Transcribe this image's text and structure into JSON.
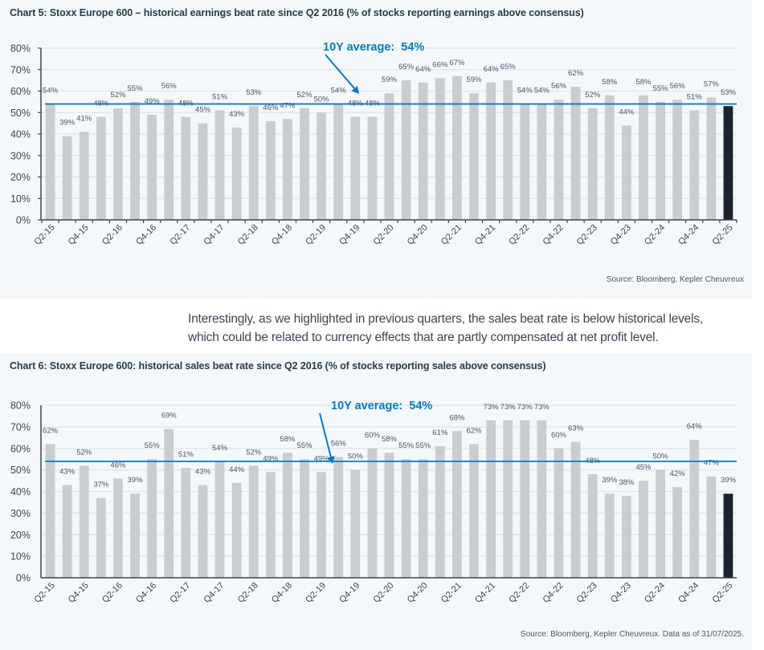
{
  "paragraph": {
    "line1": "Interestingly, as we highlighted in previous quarters, the sales beat rate is below historical levels,",
    "line2": "which could be related to currency effects that are partly compensated at net profit level."
  },
  "colors": {
    "bar": "#c9cdd1",
    "last_bar": "#1c252e",
    "average_line": "#0a7bbd",
    "grid": "#dde5ec",
    "axis": "#3b4653",
    "label": "#4a5663"
  },
  "chart_data": [
    {
      "type": "bar",
      "title": "Chart 5: Stoxx Europe 600 – historical earnings beat rate since Q2 2016 (% of stocks reporting earnings above consensus)",
      "source": "Source: Bloomberg, Kepler Cheuvreux",
      "xlabel": "",
      "ylabel": "",
      "ylim": [
        0,
        80
      ],
      "yticks": [
        "0%",
        "10%",
        "20%",
        "30%",
        "40%",
        "50%",
        "60%",
        "70%",
        "80%"
      ],
      "grid": true,
      "x_tick_marks": true,
      "y_tick_marks": true,
      "categories": [
        "Q2-15",
        "Q3-15",
        "Q4-15",
        "Q1-16",
        "Q2-16",
        "Q3-16",
        "Q4-16",
        "Q1-17",
        "Q2-17",
        "Q3-17",
        "Q4-17",
        "Q1-18",
        "Q2-18",
        "Q3-18",
        "Q4-18",
        "Q1-19",
        "Q2-19",
        "Q3-19",
        "Q4-19",
        "Q1-20",
        "Q2-20",
        "Q3-20",
        "Q4-20",
        "Q1-21",
        "Q2-21",
        "Q3-21",
        "Q4-21",
        "Q1-22",
        "Q2-22",
        "Q3-22",
        "Q4-22",
        "Q1-23",
        "Q2-23",
        "Q3-23",
        "Q4-23",
        "Q1-24",
        "Q2-24",
        "Q3-24",
        "Q4-24",
        "Q1-25",
        "Q2-25"
      ],
      "visible_tick_labels": [
        "Q2-15",
        "Q4-15",
        "Q2-16",
        "Q4-16",
        "Q2-17",
        "Q4-17",
        "Q2-18",
        "Q4-18",
        "Q2-19",
        "Q4-19",
        "Q2-20",
        "Q4-20",
        "Q2-21",
        "Q4-21",
        "Q2-22",
        "Q4-22",
        "Q2-23",
        "Q4-23",
        "Q2-24",
        "Q4-24",
        "Q2-25"
      ],
      "values": [
        54,
        39,
        41,
        48,
        52,
        55,
        49,
        56,
        48,
        45,
        51,
        43,
        53,
        46,
        47,
        52,
        50,
        54,
        48,
        48,
        59,
        65,
        64,
        66,
        67,
        59,
        64,
        65,
        54,
        54,
        56,
        62,
        52,
        58,
        44,
        58,
        55,
        56,
        51,
        57,
        53
      ],
      "data_labels": [
        "54%",
        "39%",
        "41%",
        "48%",
        "52%",
        "55%",
        "49%",
        "56%",
        "48%",
        "45%",
        "51%",
        "43%",
        "53%",
        "46%",
        "47%",
        "52%",
        "50%",
        "54%",
        "48%",
        "48%",
        "59%",
        "65%",
        "64%",
        "66%",
        "67%",
        "59%",
        "64%",
        "65%",
        "54%",
        "54%",
        "56%",
        "62%",
        "52%",
        "58%",
        "44%",
        "58%",
        "55%",
        "56%",
        "51%",
        "57%",
        "53%"
      ],
      "highlight_last": true,
      "average_line": {
        "value": 54,
        "label_prefix": "10Y average:",
        "label_value": "54%"
      }
    },
    {
      "type": "bar",
      "title": "Chart 6: Stoxx Europe 600: historical sales beat rate since Q2 2016 (% of stocks reporting sales above consensus)",
      "source": "Source: Bloomberg, Kepler Cheuvreux. Data as of 31/07/2025.",
      "xlabel": "",
      "ylabel": "",
      "ylim": [
        0,
        80
      ],
      "yticks": [
        "0%",
        "10%",
        "20%",
        "30%",
        "40%",
        "50%",
        "60%",
        "70%",
        "80%"
      ],
      "grid": true,
      "x_tick_marks": false,
      "y_tick_marks": false,
      "categories": [
        "Q2-15",
        "Q3-15",
        "Q4-15",
        "Q1-16",
        "Q2-16",
        "Q3-16",
        "Q4-16",
        "Q1-17",
        "Q2-17",
        "Q3-17",
        "Q4-17",
        "Q1-18",
        "Q2-18",
        "Q3-18",
        "Q4-18",
        "Q1-19",
        "Q2-19",
        "Q3-19",
        "Q4-19",
        "Q1-20",
        "Q2-20",
        "Q3-20",
        "Q4-20",
        "Q1-21",
        "Q2-21",
        "Q3-21",
        "Q4-21",
        "Q1-22",
        "Q2-22",
        "Q3-22",
        "Q4-22",
        "Q1-23",
        "Q2-23",
        "Q3-23",
        "Q4-23",
        "Q1-24",
        "Q2-24",
        "Q3-24",
        "Q4-24",
        "Q1-25",
        "Q2-25"
      ],
      "visible_tick_labels": [
        "Q2-15",
        "Q4-15",
        "Q2-16",
        "Q4-16",
        "Q2-17",
        "Q4-17",
        "Q2-18",
        "Q4-18",
        "Q2-19",
        "Q4-19",
        "Q2-20",
        "Q4-20",
        "Q2-21",
        "Q4-21",
        "Q2-22",
        "Q4-22",
        "Q2-23",
        "Q4-23",
        "Q2-24",
        "Q4-24",
        "Q2-25"
      ],
      "values": [
        62,
        43,
        52,
        37,
        46,
        39,
        55,
        69,
        51,
        43,
        54,
        44,
        52,
        49,
        58,
        55,
        49,
        56,
        50,
        60,
        58,
        55,
        55,
        61,
        68,
        62,
        73,
        73,
        73,
        73,
        60,
        63,
        48,
        39,
        38,
        45,
        50,
        42,
        64,
        47,
        39
      ],
      "data_labels": [
        "62%",
        "43%",
        "52%",
        "37%",
        "46%",
        "39%",
        "55%",
        "69%",
        "51%",
        "43%",
        "54%",
        "44%",
        "52%",
        "49%",
        "58%",
        "55%",
        "49%",
        "56%",
        "50%",
        "60%",
        "58%",
        "55%",
        "55%",
        "61%",
        "68%",
        "62%",
        "73%",
        "73%",
        "73%",
        "73%",
        "60%",
        "63%",
        "48%",
        "39%",
        "38%",
        "45%",
        "50%",
        "42%",
        "64%",
        "47%",
        "39%"
      ],
      "highlight_last": true,
      "average_line": {
        "value": 54,
        "label_prefix": "10Y average:",
        "label_value": "54%"
      }
    }
  ]
}
